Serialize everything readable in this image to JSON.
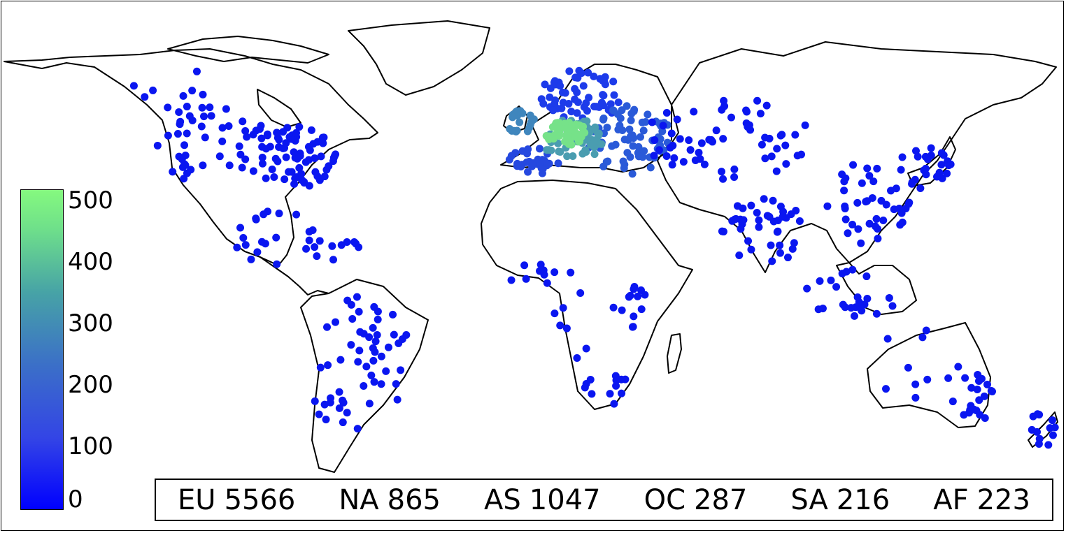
{
  "colorbar": {
    "ticks": [
      "500",
      "400",
      "300",
      "200",
      "100",
      "0"
    ],
    "range": [
      0,
      500
    ],
    "colors": [
      "#0000ff",
      "#85f97f"
    ]
  },
  "legend": [
    {
      "code": "EU",
      "count": "5566"
    },
    {
      "code": "NA",
      "count": "865"
    },
    {
      "code": "AS",
      "count": "1047"
    },
    {
      "code": "OC",
      "count": "287"
    },
    {
      "code": "SA",
      "count": "216"
    },
    {
      "code": "AF",
      "count": "223"
    }
  ]
}
